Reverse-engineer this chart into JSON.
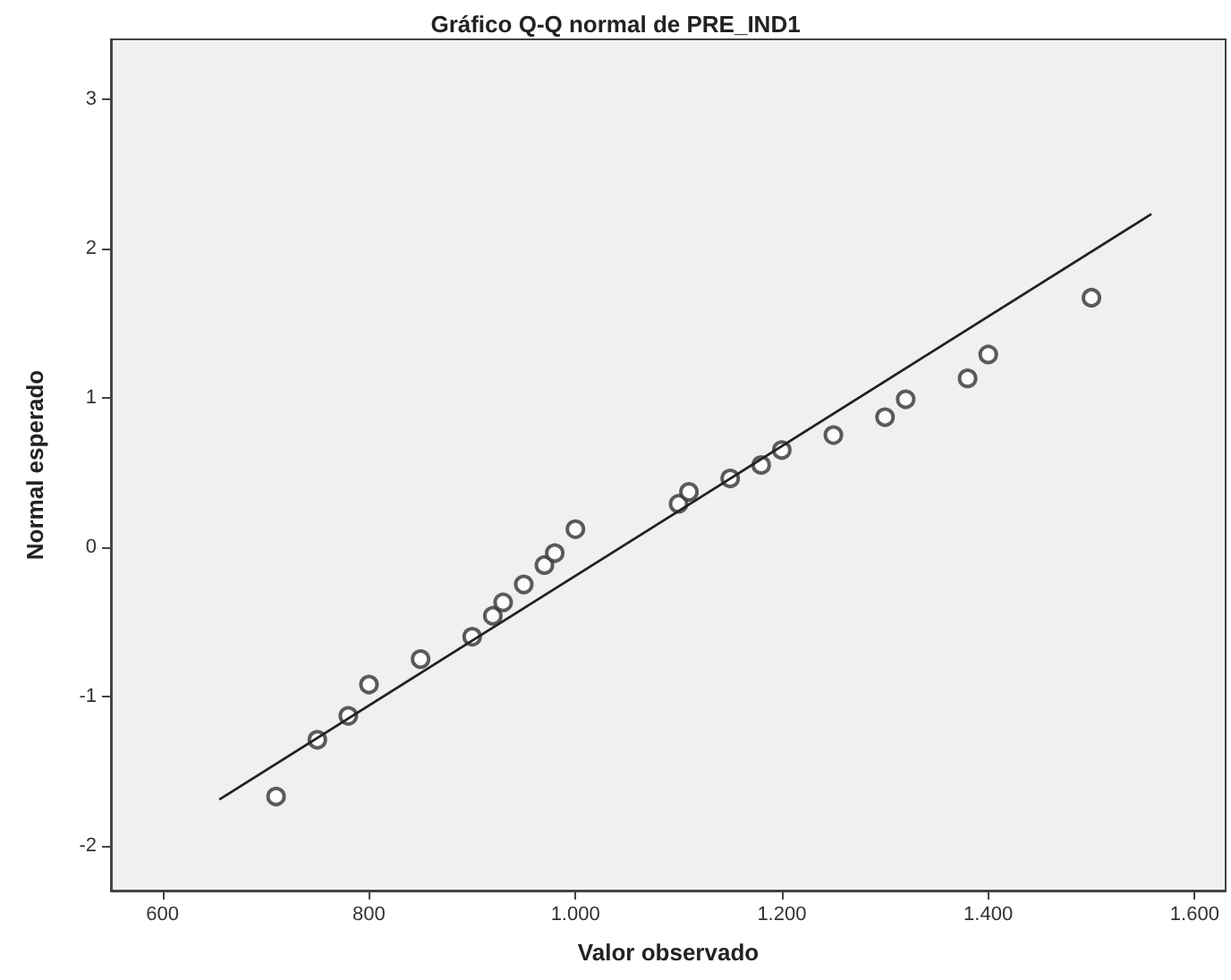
{
  "chart_data": {
    "type": "scatter",
    "title": "Gráfico Q-Q normal de PRE_IND1",
    "xlabel": "Valor observado",
    "ylabel": "Normal esperado",
    "xlim": [
      550,
      1630
    ],
    "ylim": [
      -2.3,
      3.4
    ],
    "xticks": [
      600,
      800,
      {
        "value": 1000,
        "label": "1.000"
      },
      {
        "value": 1200,
        "label": "1.200"
      },
      {
        "value": 1400,
        "label": "1.400"
      },
      {
        "value": 1600,
        "label": "1.600"
      }
    ],
    "yticks": [
      -2,
      -1,
      0,
      1,
      2,
      3
    ],
    "marker": "circle",
    "series": [
      {
        "color": "#333333",
        "x": [
          710,
          750,
          780,
          800,
          850,
          900,
          920,
          930,
          950,
          970,
          980,
          1000,
          1100,
          1110,
          1150,
          1180,
          1200,
          1250,
          1300,
          1320,
          1380,
          1400,
          1500
        ],
        "values": [
          -1.67,
          -1.29,
          -1.13,
          -0.92,
          -0.75,
          -0.6,
          -0.46,
          -0.37,
          -0.25,
          -0.12,
          -0.04,
          0.12,
          0.29,
          0.37,
          0.46,
          0.55,
          0.65,
          0.75,
          0.87,
          0.99,
          1.13,
          1.29,
          1.67
        ]
      },
      {
        "type": "line",
        "color": "#222222",
        "marker": "none",
        "line_style": "solid",
        "x": [
          655,
          1558
        ],
        "values": [
          -1.69,
          2.23
        ]
      }
    ]
  }
}
